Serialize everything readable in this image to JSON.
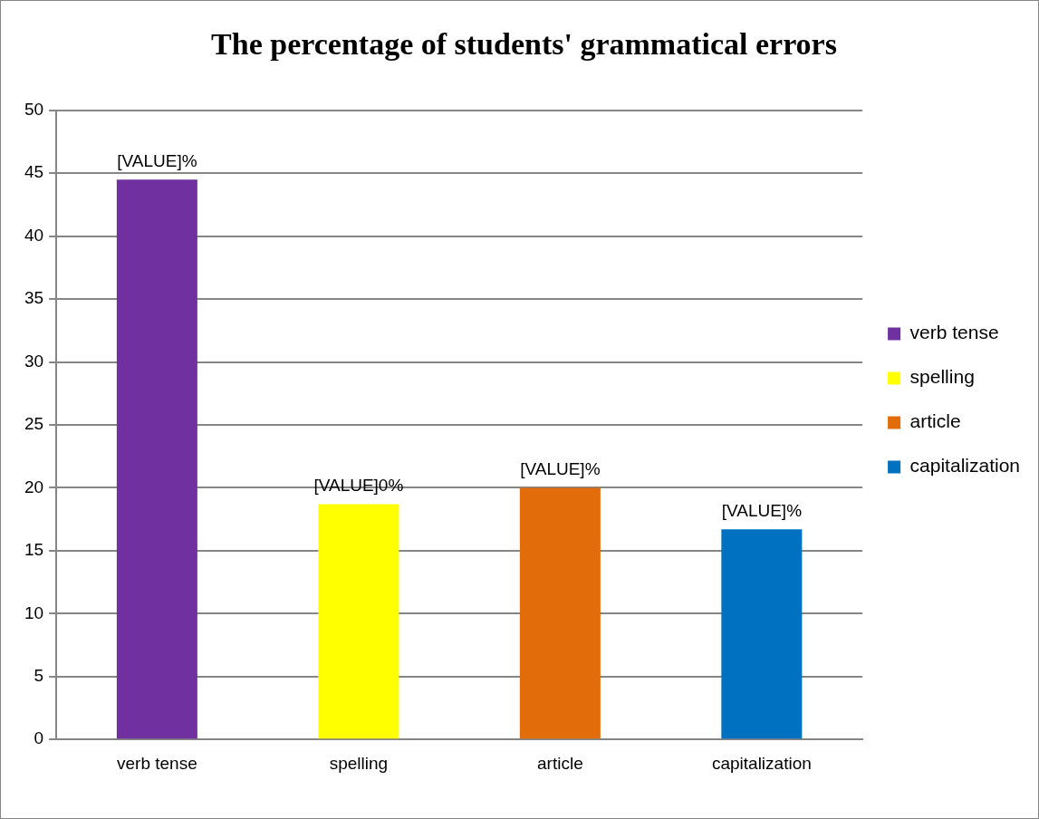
{
  "chart_data": {
    "type": "bar",
    "title": "The percentage of students' grammatical errors",
    "categories": [
      "verb tense",
      "spelling",
      "article",
      "capitalization"
    ],
    "series": [
      {
        "name": "verb tense",
        "color": "#7030a0",
        "values": [
          44.5,
          null,
          null,
          null
        ]
      },
      {
        "name": "spelling",
        "color": "#ffff00",
        "values": [
          null,
          18.7,
          null,
          null
        ]
      },
      {
        "name": "article",
        "color": "#e36c0a",
        "values": [
          null,
          null,
          20.0,
          null
        ]
      },
      {
        "name": "capitalization",
        "color": "#0070c0",
        "values": [
          null,
          null,
          null,
          16.7
        ]
      }
    ],
    "annotations": [
      {
        "text": "[VALUE]%",
        "x": "verb tense",
        "y": 44.5
      },
      {
        "text": "[VALUE]0%",
        "x": "spelling",
        "y": 18.7
      },
      {
        "text": "[VALUE]%",
        "x": "article",
        "y": 20.0
      },
      {
        "text": "[VALUE]%",
        "x": "capitalization",
        "y": 16.7
      }
    ],
    "ylim": [
      0,
      50
    ],
    "yticks": [
      0,
      5,
      10,
      15,
      20,
      25,
      30,
      35,
      40,
      45,
      50
    ],
    "grid": "y",
    "legend": "right"
  }
}
